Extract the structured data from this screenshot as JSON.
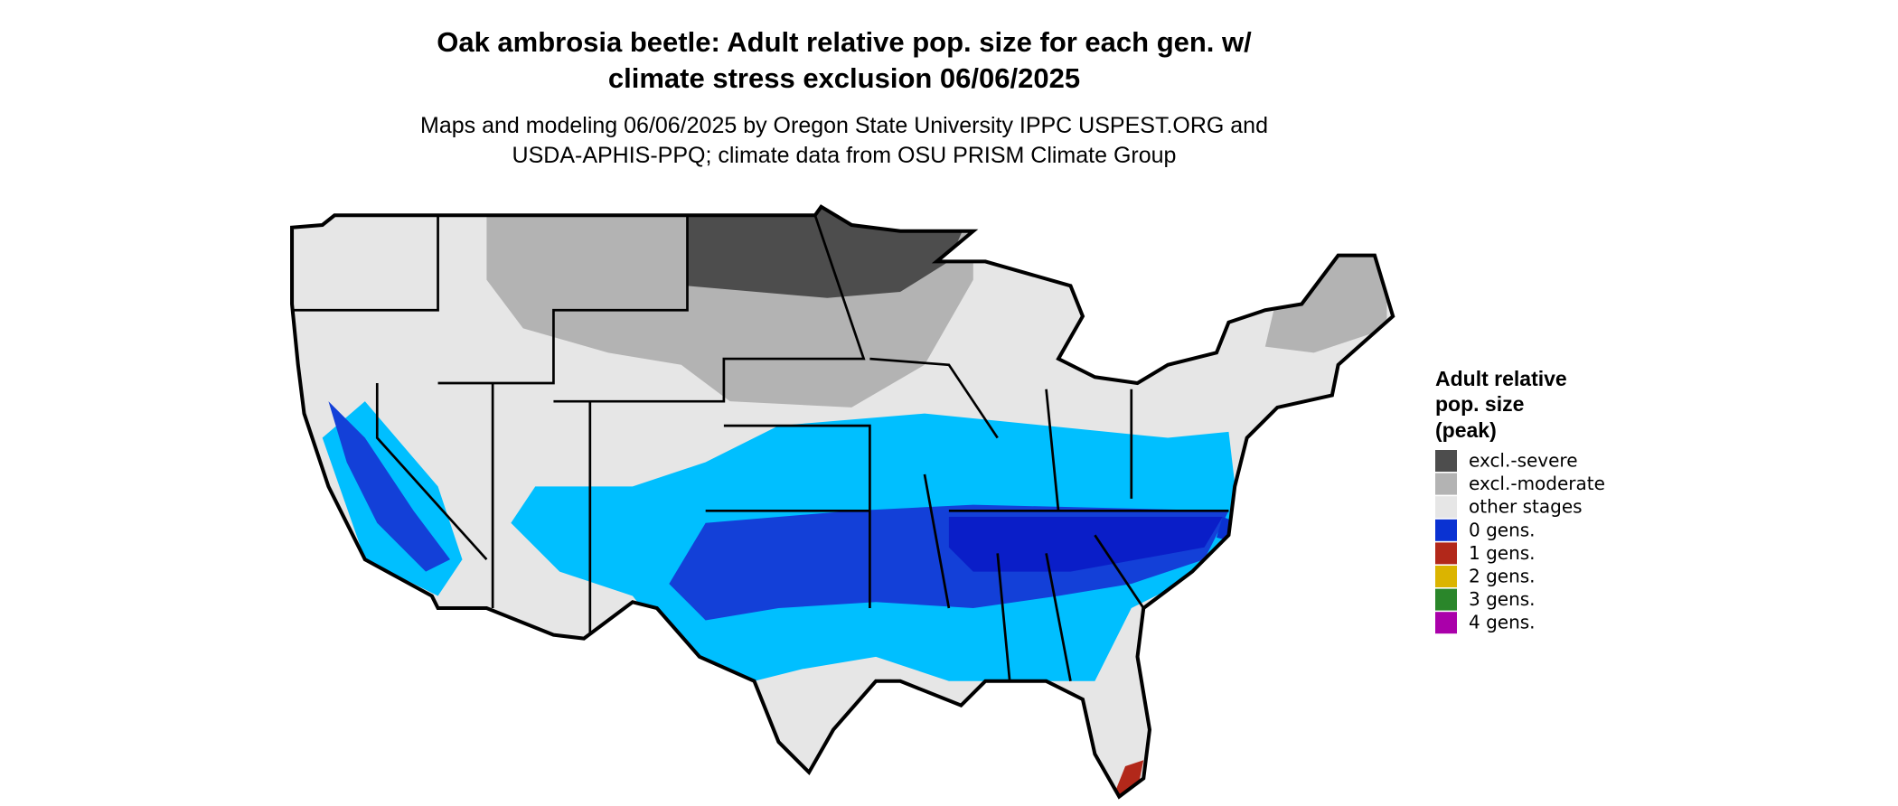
{
  "header": {
    "title": [
      "Oak ambrosia beetle: Adult relative pop. size for each gen. w/",
      "climate stress exclusion 06/06/2025"
    ],
    "subtitle": [
      "Maps and modeling 06/06/2025 by Oregon State University IPPC USPEST.ORG and",
      "USDA-APHIS-PPQ; climate data from OSU PRISM Climate Group"
    ]
  },
  "legend": {
    "title": [
      "Adult relative",
      "pop. size",
      "(peak)"
    ],
    "items": [
      {
        "label": "excl.-severe",
        "color": "#4d4d4d"
      },
      {
        "label": "excl.-moderate",
        "color": "#b3b3b3"
      },
      {
        "label": "other stages",
        "color": "#e6e6e6"
      },
      {
        "label": "0 gens.",
        "color": "#0a32d2"
      },
      {
        "label": "1 gens.",
        "color": "#b2281a"
      },
      {
        "label": "2 gens.",
        "color": "#dbb400"
      },
      {
        "label": "3 gens.",
        "color": "#2a862a"
      },
      {
        "label": "4 gens.",
        "color": "#aa00aa"
      }
    ]
  }
}
